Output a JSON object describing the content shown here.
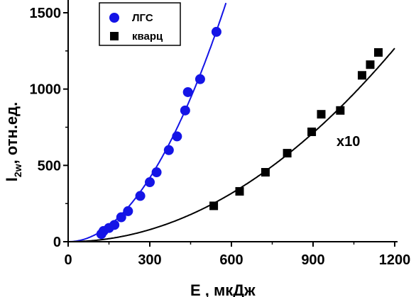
{
  "chart_data": {
    "type": "scatter",
    "xlim": [
      0,
      1200
    ],
    "ylim": [
      0,
      1500
    ],
    "x_ticks": [
      "0",
      "300",
      "600",
      "900",
      "1200"
    ],
    "y_ticks": [
      "0",
      "500",
      "1000",
      "1500"
    ],
    "ylabel_main": "I",
    "ylabel_sub": "2w",
    "ylabel_rest": ", отн.ед.",
    "xlabel_main": "E",
    "xlabel_rest": " , мкДж",
    "annotation": "x10",
    "legend_position": "top-left",
    "series": [
      {
        "name": "ЛГС",
        "marker": "circle",
        "color": "#1414e6",
        "x": [
          122,
          130,
          150,
          170,
          195,
          220,
          265,
          300,
          325,
          370,
          400,
          430,
          440,
          485,
          545
        ],
        "y": [
          50,
          70,
          90,
          110,
          160,
          200,
          300,
          390,
          455,
          600,
          690,
          860,
          980,
          1065,
          1375
        ],
        "fit_coef": 0.00465
      },
      {
        "name": "кварц",
        "marker": "square",
        "color": "#000000",
        "x": [
          535,
          630,
          725,
          805,
          895,
          930,
          1000,
          1080,
          1110,
          1140
        ],
        "y": [
          235,
          330,
          455,
          580,
          720,
          835,
          860,
          1090,
          1160,
          1240
        ],
        "fit_coef": 0.00088
      }
    ]
  }
}
